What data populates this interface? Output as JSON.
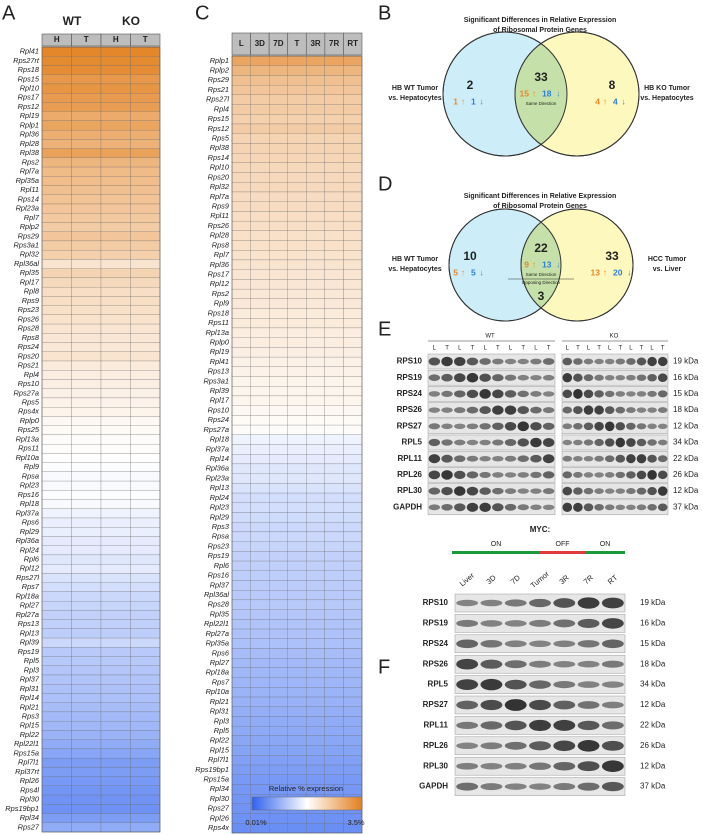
{
  "panel_a": {
    "letter": "A",
    "groups": [
      "WT",
      "KO"
    ],
    "columns": [
      "H",
      "T",
      "H",
      "T"
    ],
    "genes": [
      "Rpl41",
      "Rps27rt",
      "Rps18",
      "Rps15",
      "Rpl10",
      "Rps17",
      "Rps12",
      "Rpl19",
      "Rplp1",
      "Rpl36",
      "Rpl28",
      "Rpl38",
      "Rps2",
      "Rpl7a",
      "Rpl35a",
      "Rpl11",
      "Rps14",
      "Rpl23a",
      "Rpl7",
      "Rplp2",
      "Rps29",
      "Rps3a1",
      "Rpl32",
      "Rpl36al",
      "Rpl35",
      "Rpl17",
      "Rpl8",
      "Rps9",
      "Rps23",
      "Rps26",
      "Rps28",
      "Rps8",
      "Rps24",
      "Rps20",
      "Rps21",
      "Rpl4",
      "Rps10",
      "Rps27a",
      "Rps5",
      "Rps4x",
      "Rplp0",
      "Rps25",
      "Rpl13a",
      "Rps11",
      "Rpl10a",
      "Rpl9",
      "Rpsa",
      "Rpl23",
      "Rps16",
      "Rpl18",
      "Rpl37a",
      "Rps6",
      "Rpl29",
      "Rpl36a",
      "Rpl24",
      "Rpl6",
      "Rpl12",
      "Rps27l",
      "Rps7",
      "Rpl18a",
      "Rpl27",
      "Rpl27a",
      "Rps13",
      "Rpl13",
      "Rpl39",
      "Rps19",
      "Rpl5",
      "Rpl3",
      "Rpl37",
      "Rpl31",
      "Rpl14",
      "Rpl21",
      "Rps3",
      "Rpl15",
      "Rpl22",
      "Rpl22l1",
      "Rps15a",
      "Rpl7l1",
      "Rpl37rt",
      "Rpl26",
      "Rps4l",
      "Rpl30",
      "Rps19bp1",
      "Rpl34",
      "Rps27"
    ],
    "values": [
      3.0,
      2.8,
      2.6,
      2.0,
      2.2,
      1.9,
      1.8,
      1.3,
      1.5,
      1.2,
      1.1,
      1.6,
      1.0,
      0.9,
      0.85,
      0.8,
      0.75,
      0.7,
      0.65,
      0.6,
      0.7,
      0.6,
      0.55,
      0.35,
      0.5,
      0.45,
      0.4,
      0.4,
      0.38,
      0.36,
      0.34,
      0.33,
      0.32,
      0.35,
      0.3,
      0.28,
      0.27,
      0.26,
      0.25,
      0.24,
      0.22,
      0.21,
      0.2,
      0.2,
      0.19,
      0.18,
      0.17,
      0.17,
      0.18,
      0.17,
      0.15,
      0.14,
      0.14,
      0.13,
      0.13,
      0.12,
      0.13,
      0.11,
      0.1,
      0.09,
      0.085,
      0.08,
      0.078,
      0.075,
      0.09,
      0.07,
      0.068,
      0.065,
      0.062,
      0.06,
      0.058,
      0.055,
      0.052,
      0.05,
      0.045,
      0.04,
      0.035,
      0.03,
      0.03,
      0.028,
      0.026,
      0.025,
      0.024,
      0.03,
      0.04
    ]
  },
  "panel_c": {
    "letter": "C",
    "columns": [
      "L",
      "3D",
      "7D",
      "T",
      "3R",
      "7R",
      "RT"
    ],
    "genes": [
      "Rplp1",
      "Rplp2",
      "Rps29",
      "Rps21",
      "Rps27l",
      "Rpl4",
      "Rps15",
      "Rps12",
      "Rps5",
      "Rpl38",
      "Rps14",
      "Rpl10",
      "Rps20",
      "Rpl32",
      "Rpl7a",
      "Rps9",
      "Rpl11",
      "Rps26",
      "Rpl28",
      "Rps8",
      "Rpl7",
      "Rpl36",
      "Rps17",
      "Rpl12",
      "Rps2",
      "Rpl9",
      "Rps18",
      "Rps11",
      "Rpl13a",
      "Rplp0",
      "Rpl19",
      "Rpl41",
      "Rps13",
      "Rps3a1",
      "Rpl39",
      "Rpl17",
      "Rps10",
      "Rps24",
      "Rps27a",
      "Rpl18",
      "Rpl37a",
      "Rpl14",
      "Rpl36a",
      "Rpl23a",
      "Rpl13",
      "Rpl24",
      "Rpl23",
      "Rpl29",
      "Rps3",
      "Rpsa",
      "Rps23",
      "Rps19",
      "Rpl6",
      "Rps16",
      "Rpl37",
      "Rpl36al",
      "Rps28",
      "Rpl35",
      "Rpl22l1",
      "Rpl27a",
      "Rpl35a",
      "Rps6",
      "Rpl27",
      "Rpl18a",
      "Rps7",
      "Rpl10a",
      "Rpl21",
      "Rpl31",
      "Rpl3",
      "Rpl5",
      "Rpl22",
      "Rpl15",
      "Rpl7l1",
      "Rps19bp1",
      "Rps15a",
      "Rpl34",
      "Rpl30",
      "Rps27",
      "Rpl26",
      "Rps4x"
    ],
    "values": [
      1.5,
      1.0,
      0.8,
      0.7,
      0.6,
      0.6,
      0.55,
      0.6,
      0.5,
      0.5,
      0.48,
      0.46,
      0.45,
      0.44,
      0.42,
      0.42,
      0.4,
      0.4,
      0.38,
      0.38,
      0.36,
      0.35,
      0.34,
      0.33,
      0.32,
      0.31,
      0.3,
      0.3,
      0.28,
      0.28,
      0.27,
      0.26,
      0.25,
      0.24,
      0.24,
      0.23,
      0.22,
      0.21,
      0.2,
      0.15,
      0.14,
      0.13,
      0.12,
      0.12,
      0.11,
      0.1,
      0.1,
      0.095,
      0.09,
      0.09,
      0.085,
      0.08,
      0.078,
      0.075,
      0.072,
      0.07,
      0.068,
      0.065,
      0.062,
      0.06,
      0.058,
      0.055,
      0.052,
      0.05,
      0.048,
      0.046,
      0.044,
      0.042,
      0.04,
      0.038,
      0.036,
      0.034,
      0.032,
      0.03,
      0.028,
      0.027,
      0.026,
      0.025,
      0.024,
      0.023
    ]
  },
  "panel_b": {
    "letter": "B",
    "title": [
      "Significant Differences in Relative Expression",
      "of Ribosomal Protein Genes"
    ],
    "left_label": [
      "HB WT Tumor",
      "vs. Hepatocytes"
    ],
    "right_label": [
      "HB KO Tumor",
      "vs. Hepatocytes"
    ],
    "left": {
      "count": 2,
      "up": 1,
      "down": 1
    },
    "center": {
      "count": 33,
      "up": 15,
      "down": 18,
      "note": "Same Direction"
    },
    "right": {
      "count": 8,
      "up": 4,
      "down": 4
    }
  },
  "panel_d": {
    "letter": "D",
    "title": [
      "Significant Differences in Relative Expression",
      "of Ribosomal Protein Genes"
    ],
    "left_label": [
      "HB WT Tumor",
      "vs. Hepatocytes"
    ],
    "right_label": [
      "HCC Tumor",
      "vs. Liver"
    ],
    "left": {
      "count": 10,
      "up": 5,
      "down": 5
    },
    "center": {
      "count": 22,
      "up": 9,
      "down": 13,
      "note": "Same Direction"
    },
    "opposing": {
      "count": 3,
      "note": "Opposing Direction"
    },
    "right": {
      "count": 33,
      "up": 13,
      "down": 20
    }
  },
  "panel_e": {
    "letter": "E",
    "groups": [
      "WT",
      "KO"
    ],
    "lanes": [
      "L",
      "T",
      "L",
      "T",
      "L",
      "T",
      "L",
      "T",
      "L",
      "T"
    ],
    "proteins": [
      "RPS10",
      "RPS19",
      "RPS24",
      "RPS26",
      "RPS27",
      "RPL5",
      "RPL11",
      "RPL26",
      "RPL30",
      "GAPDH"
    ],
    "sizes": [
      "19 kDa",
      "16 kDa",
      "15 kDa",
      "18 kDa",
      "12 kDa",
      "34 kDa",
      "22 kDa",
      "26 kDa",
      "12 kDa",
      "37 kDa"
    ]
  },
  "panel_f": {
    "letter": "F",
    "myc_label": "MYC:",
    "phases": [
      "ON",
      "OFF",
      "ON"
    ],
    "lanes": [
      "Liver",
      "3D",
      "7D",
      "Tumor",
      "3R",
      "7R",
      "RT"
    ],
    "proteins": [
      "RPS10",
      "RPS19",
      "RPS24",
      "RPS26",
      "RPL5",
      "RPS27",
      "RPL11",
      "RPL26",
      "RPL30",
      "GAPDH"
    ],
    "sizes": [
      "19 kDa",
      "16 kDa",
      "15 kDa",
      "18 kDa",
      "34 kDa",
      "12 kDa",
      "22 kDa",
      "26 kDa",
      "12 kDa",
      "37 kDa"
    ]
  },
  "colorbar": {
    "title": "Relative % expression",
    "min": 0.01,
    "max": 3.5,
    "min_label": "0.01%",
    "max_label": "3.5%"
  }
}
